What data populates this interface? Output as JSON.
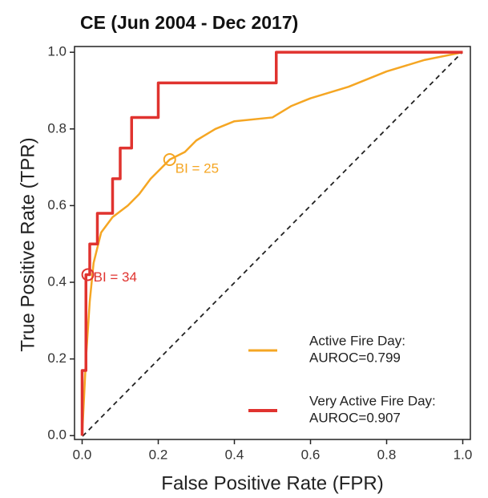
{
  "chart_data": {
    "type": "line",
    "title": "CE (Jun 2004 - Dec 2017)",
    "x_label": "False Positive Rate (FPR)",
    "y_label": "True Positive Rate (TPR)",
    "xlim": [
      -0.02,
      1.02
    ],
    "ylim": [
      -0.01,
      1.015
    ],
    "xticks": [
      {
        "value": 0,
        "label": "0.0"
      },
      0.2,
      0.4,
      0.6,
      0.8,
      {
        "value": 1,
        "label": "1.0"
      }
    ],
    "yticks": [
      {
        "value": 0,
        "label": "0.0"
      },
      0.2,
      0.4,
      0.6,
      0.8,
      {
        "value": 1,
        "label": "1.0"
      }
    ],
    "grid": false,
    "legend": "lower right",
    "series": [
      {
        "name": "Active Fire Day:",
        "sublabel": "AUROC=0.799",
        "color": "#f5a623",
        "x": [
          0,
          0.01,
          0.02,
          0.03,
          0.05,
          0.08,
          0.12,
          0.15,
          0.18,
          0.21,
          0.23,
          0.27,
          0.3,
          0.35,
          0.4,
          0.5,
          0.55,
          0.6,
          0.7,
          0.8,
          0.9,
          1
        ],
        "values": [
          0,
          0.2,
          0.35,
          0.45,
          0.53,
          0.57,
          0.6,
          0.63,
          0.67,
          0.7,
          0.72,
          0.74,
          0.77,
          0.8,
          0.82,
          0.83,
          0.86,
          0.88,
          0.91,
          0.95,
          0.98,
          1
        ]
      },
      {
        "name": "Very Active Fire Day:",
        "sublabel": "AUROC=0.907",
        "color": "#e0332f",
        "x": [
          0,
          0,
          0.01,
          0.01,
          0.02,
          0.02,
          0.04,
          0.04,
          0.08,
          0.08,
          0.1,
          0.1,
          0.13,
          0.13,
          0.2,
          0.2,
          0.51,
          0.51,
          1
        ],
        "values": [
          0,
          0.17,
          0.17,
          0.42,
          0.42,
          0.5,
          0.5,
          0.58,
          0.58,
          0.67,
          0.67,
          0.75,
          0.75,
          0.83,
          0.83,
          0.92,
          0.92,
          1,
          1
        ]
      }
    ],
    "annotations": [
      {
        "text": "BI = 25",
        "x": 0.23,
        "y": 0.72,
        "series": 0
      },
      {
        "text": "BI = 34",
        "x": 0.015,
        "y": 0.42,
        "series": 1
      }
    ]
  }
}
